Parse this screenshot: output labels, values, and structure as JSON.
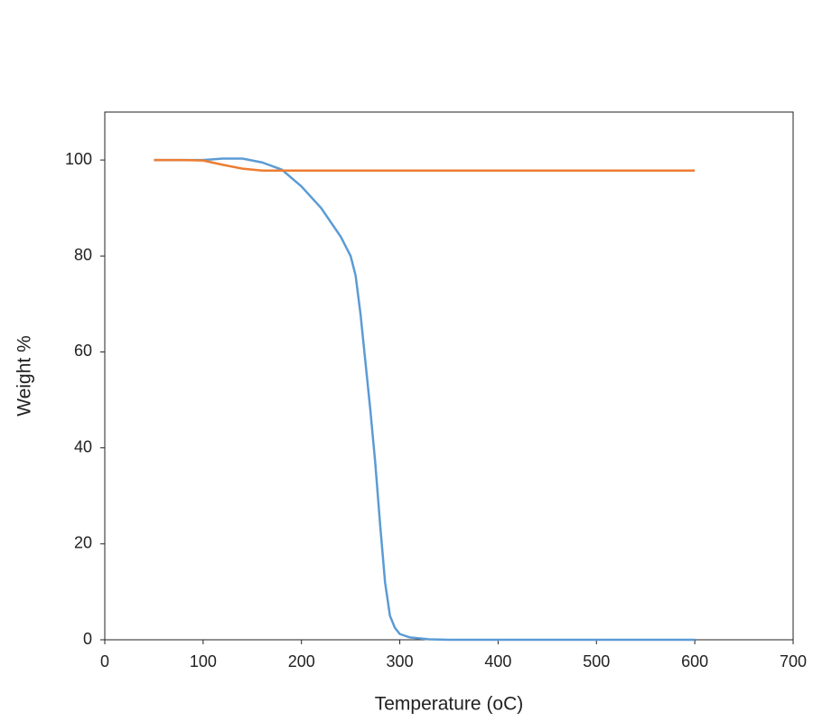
{
  "chart_data": {
    "type": "line",
    "x_label": "Temperature (oC)",
    "y_label": "Weight %",
    "xlim": [
      0,
      700
    ],
    "xticks": [
      0,
      100,
      200,
      300,
      400,
      500,
      600,
      700
    ],
    "ylim": [
      0,
      110
    ],
    "yticks": [
      0,
      20,
      40,
      60,
      80,
      100
    ],
    "series": [
      {
        "color": "#5b9bd5",
        "x": [
          50,
          80,
          100,
          120,
          140,
          160,
          180,
          200,
          220,
          240,
          250,
          255,
          260,
          265,
          270,
          275,
          280,
          285,
          290,
          295,
          300,
          310,
          330,
          350,
          400,
          500,
          600
        ],
        "values": [
          100,
          100,
          100,
          100.3,
          100.3,
          99.5,
          98,
          94.5,
          90,
          84,
          80,
          76,
          68,
          58,
          48,
          37,
          24,
          12,
          5,
          2.5,
          1.2,
          0.5,
          0.1,
          0,
          0,
          0,
          0
        ]
      },
      {
        "color": "#ed7d31",
        "x": [
          50,
          80,
          100,
          120,
          140,
          160,
          200,
          300,
          400,
          500,
          600
        ],
        "values": [
          100,
          100,
          99.9,
          99,
          98.2,
          97.8,
          97.8,
          97.8,
          97.8,
          97.8,
          97.8
        ]
      }
    ]
  }
}
